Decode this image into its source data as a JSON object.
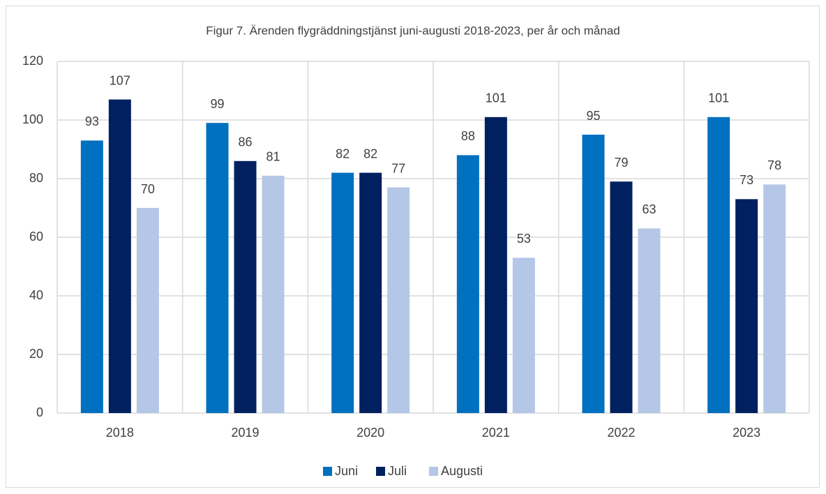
{
  "chart_data": {
    "type": "bar",
    "title": "Figur 7. Ärenden flygräddningstjänst juni-augusti 2018-2023, per år och månad",
    "categories": [
      "2018",
      "2019",
      "2020",
      "2021",
      "2022",
      "2023"
    ],
    "series": [
      {
        "name": "Juni",
        "color": "#0070c0",
        "values": [
          93,
          99,
          82,
          88,
          95,
          101
        ]
      },
      {
        "name": "Juli",
        "color": "#002060",
        "values": [
          107,
          86,
          82,
          101,
          79,
          73
        ]
      },
      {
        "name": "Augusti",
        "color": "#b4c7e7",
        "values": [
          70,
          81,
          77,
          53,
          63,
          78
        ]
      }
    ],
    "ylim": [
      0,
      120
    ],
    "yticks": [
      0,
      20,
      40,
      60,
      80,
      100,
      120
    ],
    "grid": true,
    "legend": "bottom"
  }
}
